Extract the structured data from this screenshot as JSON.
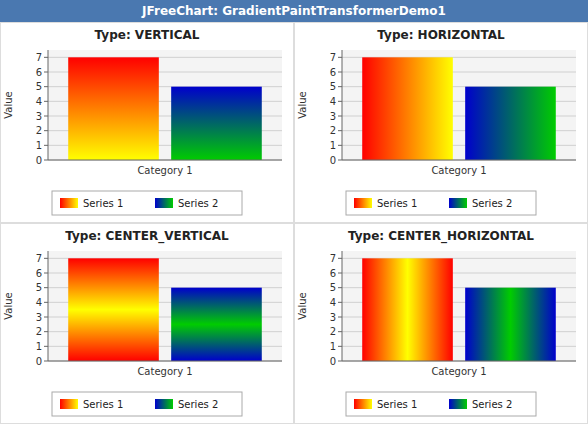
{
  "title": "JFreeChart: GradientPaintTransformerDemo1",
  "chart_data": [
    {
      "type": "bar",
      "title": "Type: VERTICAL",
      "categories": [
        "Category 1"
      ],
      "series": [
        {
          "name": "Series 1",
          "color": "#ff0000",
          "values": [
            7
          ]
        },
        {
          "name": "Series 2",
          "color": "#0000cc",
          "values": [
            5
          ]
        }
      ],
      "ylabel": "Value",
      "ylim": [
        0,
        7.5
      ],
      "yticks": [
        0,
        1,
        2,
        3,
        4,
        5,
        6,
        7
      ],
      "grid": true,
      "legend": "bottom"
    },
    {
      "type": "bar",
      "title": "Type: HORIZONTAL",
      "categories": [
        "Category 1"
      ],
      "series": [
        {
          "name": "Series 1",
          "color": "#ff0000",
          "values": [
            7
          ]
        },
        {
          "name": "Series 2",
          "color": "#0000cc",
          "values": [
            5
          ]
        }
      ],
      "ylabel": "Value",
      "ylim": [
        0,
        7.5
      ],
      "yticks": [
        0,
        1,
        2,
        3,
        4,
        5,
        6,
        7
      ],
      "grid": true,
      "legend": "bottom"
    },
    {
      "type": "bar",
      "title": "Type: CENTER_VERTICAL",
      "categories": [
        "Category 1"
      ],
      "series": [
        {
          "name": "Series 1",
          "color": "#ff0000",
          "values": [
            7
          ]
        },
        {
          "name": "Series 2",
          "color": "#0000cc",
          "values": [
            5
          ]
        }
      ],
      "ylabel": "Value",
      "ylim": [
        0,
        7.5
      ],
      "yticks": [
        0,
        1,
        2,
        3,
        4,
        5,
        6,
        7
      ],
      "grid": true,
      "legend": "bottom"
    },
    {
      "type": "bar",
      "title": "Type: CENTER_HORIZONTAL",
      "categories": [
        "Category 1"
      ],
      "series": [
        {
          "name": "Series 1",
          "color": "#ff0000",
          "values": [
            7
          ]
        },
        {
          "name": "Series 2",
          "color": "#0000cc",
          "values": [
            5
          ]
        }
      ],
      "ylabel": "Value",
      "ylim": [
        0,
        7.5
      ],
      "yticks": [
        0,
        1,
        2,
        3,
        4,
        5,
        6,
        7
      ],
      "grid": true,
      "legend": "bottom"
    }
  ]
}
